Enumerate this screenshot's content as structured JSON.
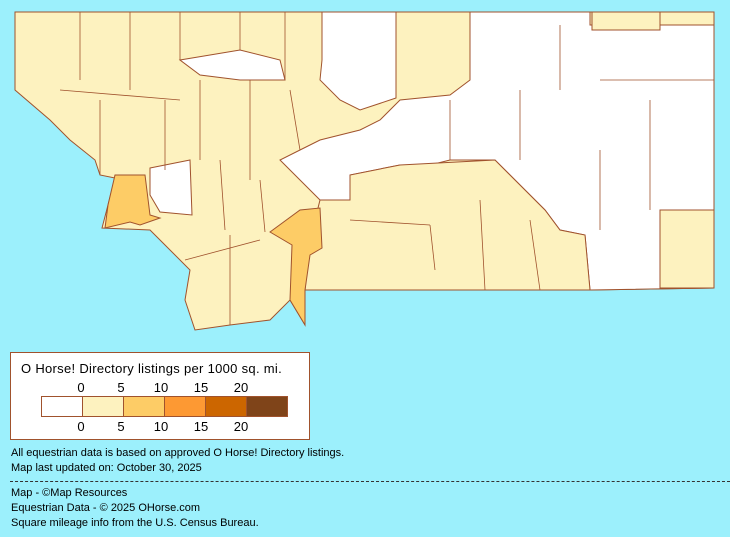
{
  "map": {
    "region": "Montana counties",
    "colors": {
      "background": "#9cf0fc",
      "border": "#a0522d",
      "bins": [
        "#ffffff",
        "#fdf2bf",
        "#fdcc66",
        "#fd9933",
        "#cc6600",
        "#7f4419"
      ]
    }
  },
  "legend": {
    "title": "O Horse! Directory listings per 1000 sq. mi.",
    "top_ticks": [
      "0",
      "5",
      "10",
      "15",
      "20"
    ],
    "bottom_ticks": [
      "0",
      "5",
      "10",
      "15",
      "20"
    ]
  },
  "notes": {
    "line1": "All equestrian data is based on approved O Horse! Directory listings.",
    "line2": "Map last updated on: October 30, 2025"
  },
  "credits": {
    "map": "Map - ©Map Resources",
    "data": "Equestrian Data - © 2025 OHorse.com",
    "census": "Square mileage info from the U.S. Census Bureau."
  }
}
